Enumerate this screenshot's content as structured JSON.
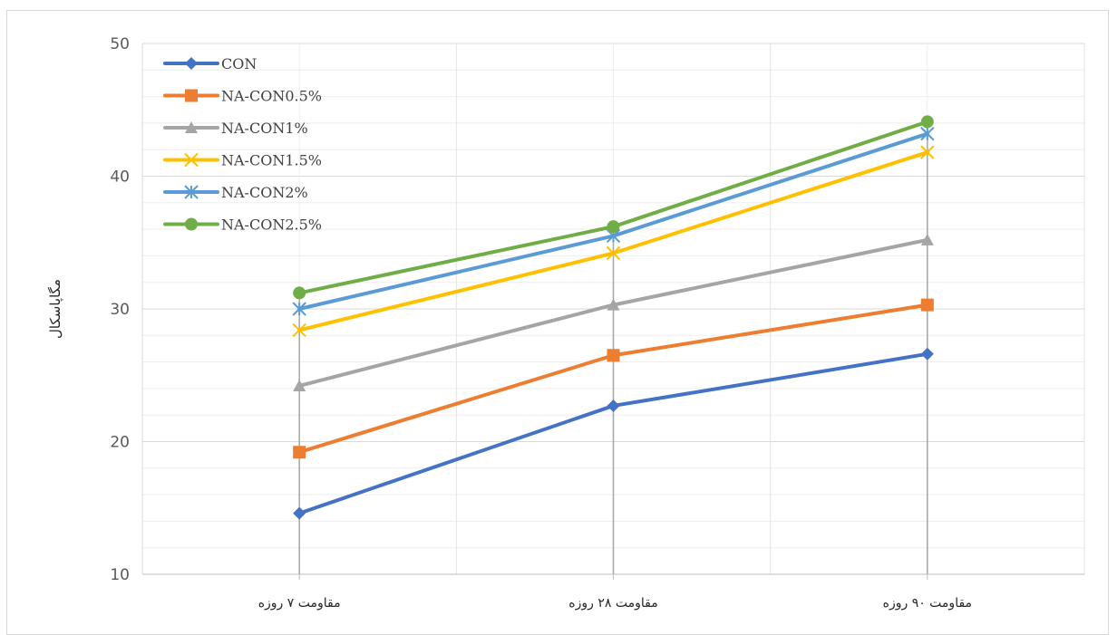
{
  "chart_data": {
    "type": "line",
    "categories": [
      "مقاومت ۷ روزه",
      "مقاومت ۲۸ روزه",
      "مقاومت ۹۰ روزه"
    ],
    "ylabel": "مگاپاسکال",
    "xlabel": "",
    "title": "",
    "ylim": [
      10,
      50
    ],
    "yticks": [
      10,
      20,
      30,
      40,
      50
    ],
    "grid": true,
    "legend_position": "top-left",
    "series": [
      {
        "name": "CON",
        "values": [
          14.6,
          22.7,
          26.6
        ],
        "color": "#4472c4",
        "marker": "diamond"
      },
      {
        "name": "NA-CON0.5%",
        "values": [
          19.2,
          26.5,
          30.3
        ],
        "color": "#ed7d31",
        "marker": "square"
      },
      {
        "name": "NA-CON1%",
        "values": [
          24.2,
          30.3,
          35.2
        ],
        "color": "#a5a5a5",
        "marker": "triangle"
      },
      {
        "name": "NA-CON1.5%",
        "values": [
          28.4,
          34.2,
          41.8
        ],
        "color": "#ffc000",
        "marker": "x"
      },
      {
        "name": "NA-CON2%",
        "values": [
          30.0,
          35.5,
          43.2
        ],
        "color": "#5b9bd5",
        "marker": "star"
      },
      {
        "name": "NA-CON2.5%",
        "values": [
          31.2,
          36.2,
          44.1
        ],
        "color": "#70ad47",
        "marker": "circle"
      }
    ]
  }
}
